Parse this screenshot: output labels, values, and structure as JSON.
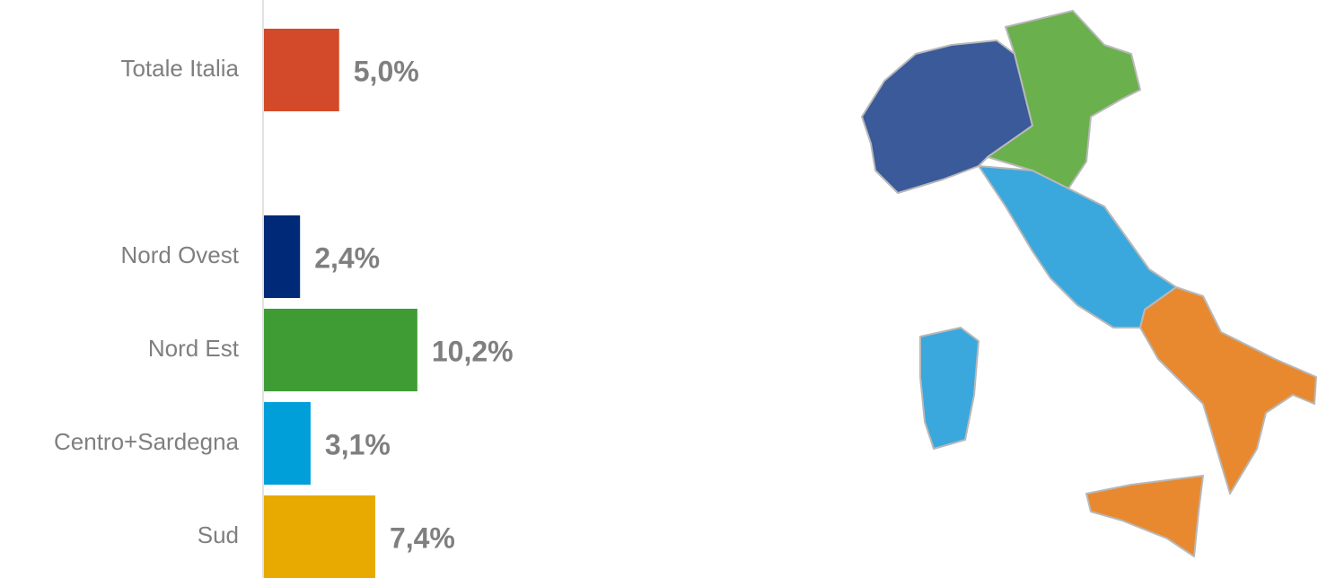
{
  "chart_data": {
    "type": "bar",
    "orientation": "horizontal",
    "categories": [
      "Totale Italia",
      null,
      "Nord Ovest",
      "Nord Est",
      "Centro+Sardegna",
      "Sud"
    ],
    "values": [
      5.0,
      null,
      2.4,
      10.2,
      3.1,
      7.4
    ],
    "value_labels": [
      "5,0%",
      null,
      "2,4%",
      "10,2%",
      "3,1%",
      "7,4%"
    ],
    "colors": [
      "#d24a29",
      null,
      "#002a78",
      "#3f9c35",
      "#009fd9",
      "#e8a900"
    ]
  }
}
